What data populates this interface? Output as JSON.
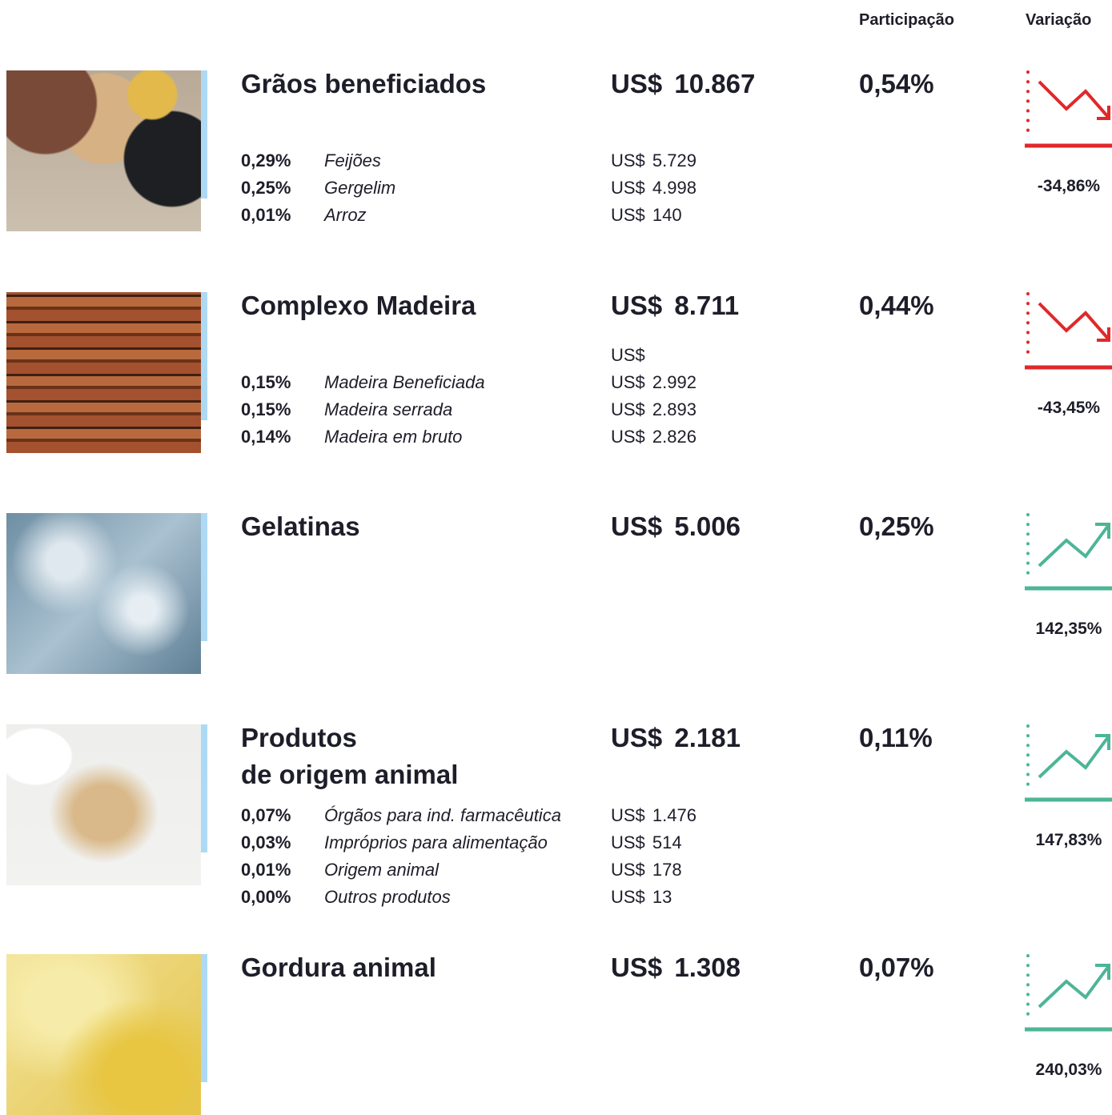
{
  "header": {
    "share": "Participação",
    "change": "Variação"
  },
  "rows": [
    {
      "title": "Grãos beneficiados",
      "value": "US$ 10.867",
      "share": "0,54%",
      "change": "-34,86%",
      "items": [
        {
          "share": "0,29%",
          "name": "Feijões",
          "value": "US$ 5.729"
        },
        {
          "share": "0,25%",
          "name": "Gergelim",
          "value": "US$ 4.998"
        },
        {
          "share": "0,01%",
          "name": "Arroz",
          "value": "US$ 140"
        }
      ]
    },
    {
      "title": "Complexo Madeira",
      "value": "US$ 8.711",
      "share": "0,44%",
      "change": "-43,45%",
      "items": [
        {
          "value": "US$"
        },
        {
          "share": "0,15%",
          "name": "Madeira Beneficiada",
          "value": "US$ 2.992"
        },
        {
          "share": "0,15%",
          "name": "Madeira serrada",
          "value": "US$ 2.893"
        },
        {
          "share": "0,14%",
          "name": "Madeira em bruto",
          "value": "US$ 2.826"
        }
      ]
    },
    {
      "title": "Gelatinas",
      "value": "US$ 5.006",
      "share": "0,25%",
      "change": "142,35%",
      "items": []
    },
    {
      "title": "Produtos\nde origem animal",
      "value": "US$ 2.181",
      "share": "0,11%",
      "change": "147,83%",
      "items": [
        {
          "share": "0,07%",
          "name": "Órgãos para ind. farmacêutica",
          "value": "US$ 1.476"
        },
        {
          "share": "0,03%",
          "name": "Impróprios para alimentação",
          "value": "US$ 514"
        },
        {
          "share": "0,01%",
          "name": "Origem animal",
          "value": "US$ 178"
        },
        {
          "share": "0,00%",
          "name": "Outros produtos",
          "value": "US$ 13"
        }
      ]
    },
    {
      "title": "Gordura animal",
      "value": "US$ 1.308",
      "share": "0,07%",
      "change": "240,03%",
      "items": []
    }
  ]
}
